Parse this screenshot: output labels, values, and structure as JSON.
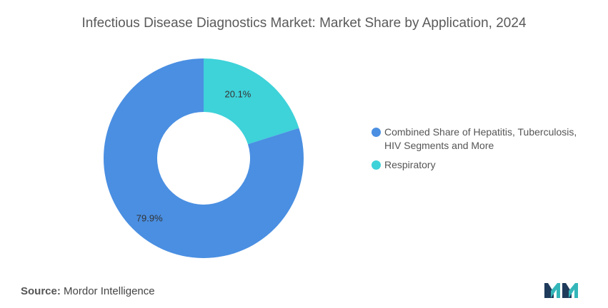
{
  "title": "Infectious Disease Diagnostics Market: Market Share by Application, 2024",
  "source": {
    "label": "Source:",
    "value": "Mordor Intelligence"
  },
  "logo_icon": "mordor-intelligence-logo-icon",
  "colors": {
    "combined": "#4a8fe2",
    "respiratory": "#3ed2d9",
    "logo_dark": "#1f3b5c",
    "logo_teal": "#34b6b9"
  },
  "chart_data": {
    "type": "pie",
    "donut": true,
    "title": "Infectious Disease Diagnostics Market: Market Share by Application, 2024",
    "legend_position": "right",
    "slices": [
      {
        "name": "Respiratory",
        "value": 20.1,
        "label": "20.1%",
        "color": "#3ed2d9"
      },
      {
        "name": "Combined Share of Hepatitis, Tuberculosis, HIV Segments and More",
        "value": 79.9,
        "label": "79.9%",
        "color": "#4a8fe2"
      }
    ],
    "legend": [
      {
        "name": "Combined Share of Hepatitis, Tuberculosis, HIV Segments and More",
        "color": "#4a8fe2"
      },
      {
        "name": "Respiratory",
        "color": "#3ed2d9"
      }
    ]
  }
}
